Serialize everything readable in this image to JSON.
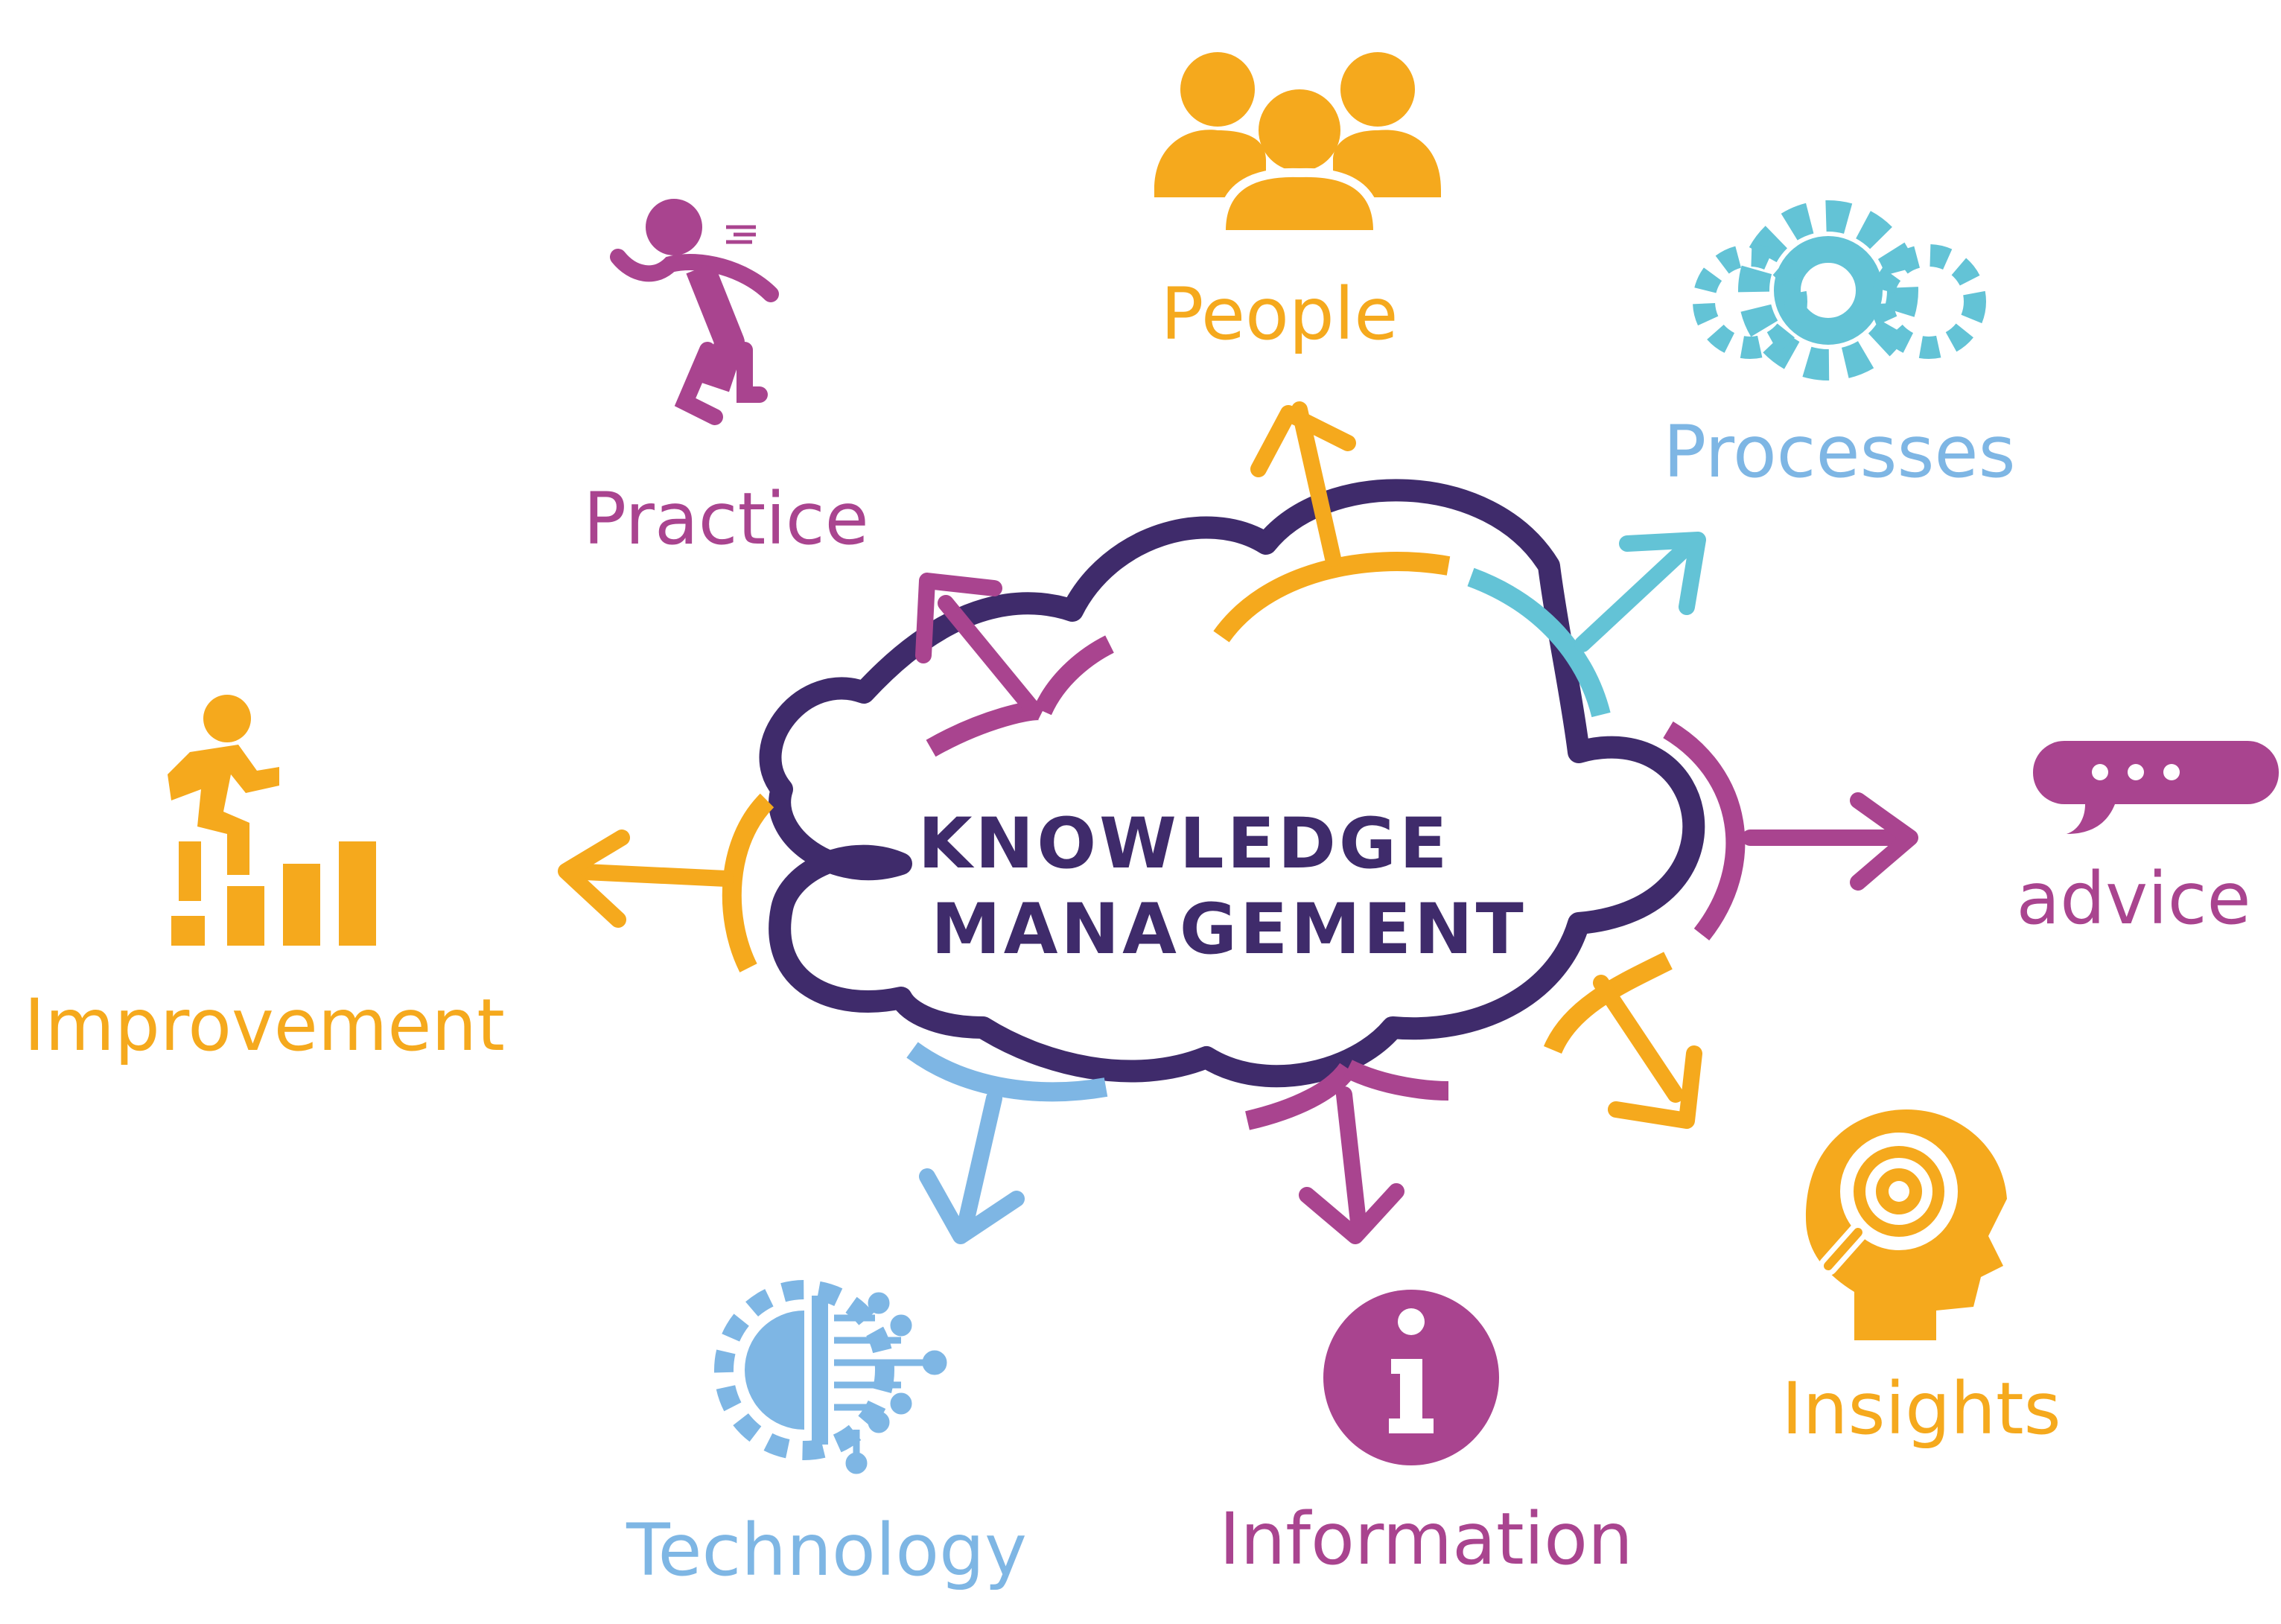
{
  "center": {
    "line1": "KNOWLEDGE",
    "line2": "MANAGEMENT"
  },
  "colors": {
    "purple_dark": "#3f2b6b",
    "magenta": "#a9448f",
    "orange": "#f5a91d",
    "teal": "#63c3d6",
    "light_blue": "#7eb6e4"
  },
  "nodes": {
    "people": {
      "label": "People",
      "icon": "people-group-icon"
    },
    "processes": {
      "label": "Processes",
      "icon": "gears-icon"
    },
    "practice": {
      "label": "Practice",
      "icon": "running-person-icon"
    },
    "improvement": {
      "label": "Improvement",
      "icon": "climbing-steps-icon"
    },
    "advice": {
      "label": "advice",
      "icon": "speech-bubble-icon"
    },
    "insights": {
      "label": "Insights",
      "icon": "head-target-icon"
    },
    "information": {
      "label": "Information",
      "icon": "info-icon"
    },
    "technology": {
      "label": "Technology",
      "icon": "circuit-brain-icon"
    }
  }
}
